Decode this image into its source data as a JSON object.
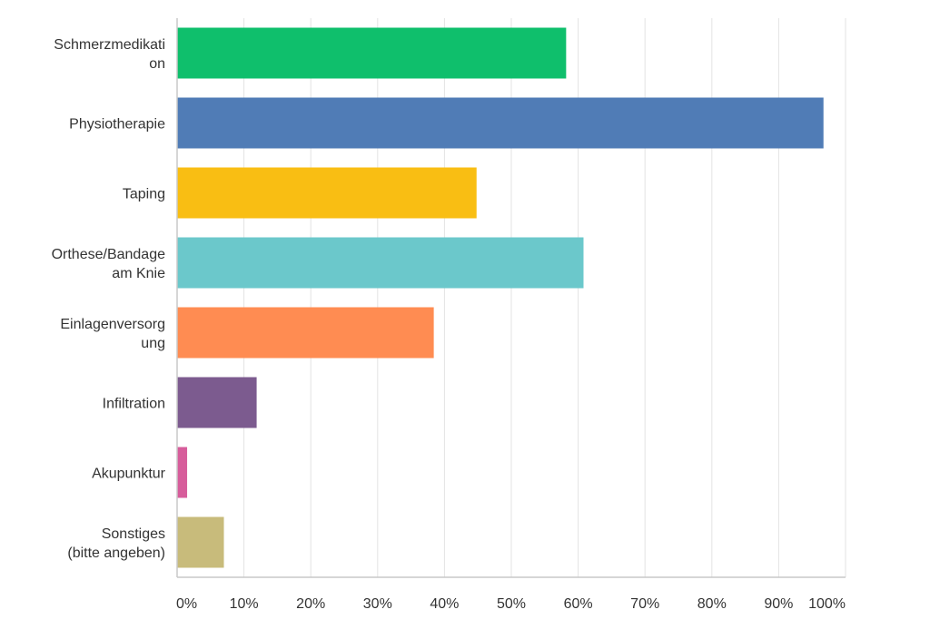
{
  "chart_data": {
    "type": "bar",
    "orientation": "horizontal",
    "categories": [
      [
        "Schmerzmedikati",
        "on"
      ],
      [
        "Physiotherapie"
      ],
      [
        "Taping"
      ],
      [
        "Orthese/Bandage",
        "am Knie"
      ],
      [
        "Einlagenversorg",
        "ung"
      ],
      [
        "Infiltration"
      ],
      [
        "Akupunktur"
      ],
      [
        "Sonstiges",
        "(bitte angeben)"
      ]
    ],
    "values": [
      58.2,
      96.7,
      44.8,
      60.8,
      38.4,
      11.9,
      1.5,
      7.0
    ],
    "colors": [
      "#0fbf6c",
      "#507cb6",
      "#f9be13",
      "#6bc8cb",
      "#ff8c52",
      "#7c5b8f",
      "#d75d9b",
      "#c8bb7b"
    ],
    "xlim": [
      0,
      100
    ],
    "x_ticks": [
      "0%",
      "10%",
      "20%",
      "30%",
      "40%",
      "50%",
      "60%",
      "70%",
      "80%",
      "90%",
      "100%"
    ],
    "grid": true,
    "title": "",
    "xlabel": "",
    "ylabel": ""
  }
}
